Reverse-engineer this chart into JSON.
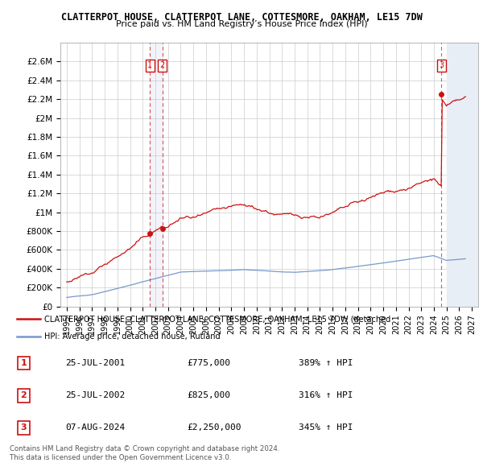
{
  "title": "CLATTERPOT HOUSE, CLATTERPOT LANE, COTTESMORE, OAKHAM, LE15 7DW",
  "subtitle": "Price paid vs. HM Land Registry’s House Price Index (HPI)",
  "hpi_color": "#7799cc",
  "price_color": "#cc1111",
  "annotation_color": "#cc1111",
  "background_color": "#ffffff",
  "grid_color": "#cccccc",
  "ylim": [
    0,
    2800000
  ],
  "yticks": [
    0,
    200000,
    400000,
    600000,
    800000,
    1000000,
    1200000,
    1400000,
    1600000,
    1800000,
    2000000,
    2200000,
    2400000,
    2600000
  ],
  "ytick_labels": [
    "£0",
    "£200K",
    "£400K",
    "£600K",
    "£800K",
    "£1M",
    "£1.2M",
    "£1.4M",
    "£1.6M",
    "£1.8M",
    "£2M",
    "£2.2M",
    "£2.4M",
    "£2.6M"
  ],
  "xlim_start": 1994.5,
  "xlim_end": 2027.5,
  "xticks": [
    1995,
    1996,
    1997,
    1998,
    1999,
    2000,
    2001,
    2002,
    2003,
    2004,
    2005,
    2006,
    2007,
    2008,
    2009,
    2010,
    2011,
    2012,
    2013,
    2014,
    2015,
    2016,
    2017,
    2018,
    2019,
    2020,
    2021,
    2022,
    2023,
    2024,
    2025,
    2026,
    2027
  ],
  "purchases": [
    {
      "year": 2001.56,
      "price": 775000,
      "label": "1"
    },
    {
      "year": 2002.56,
      "price": 825000,
      "label": "2"
    },
    {
      "year": 2024.6,
      "price": 2250000,
      "label": "3"
    }
  ],
  "legend_label_red": "CLATTERPOT HOUSE, CLATTERPOT LANE, COTTESMORE, OAKHAM, LE15 7DW (detached",
  "legend_label_blue": "HPI: Average price, detached house, Rutland",
  "table_rows": [
    {
      "num": "1",
      "date": "25-JUL-2001",
      "price": "£775,000",
      "change": "389% ↑ HPI"
    },
    {
      "num": "2",
      "date": "25-JUL-2002",
      "price": "£825,000",
      "change": "316% ↑ HPI"
    },
    {
      "num": "3",
      "date": "07-AUG-2024",
      "price": "£2,250,000",
      "change": "345% ↑ HPI"
    }
  ],
  "footer": "Contains HM Land Registry data © Crown copyright and database right 2024.\nThis data is licensed under the Open Government Licence v3.0."
}
